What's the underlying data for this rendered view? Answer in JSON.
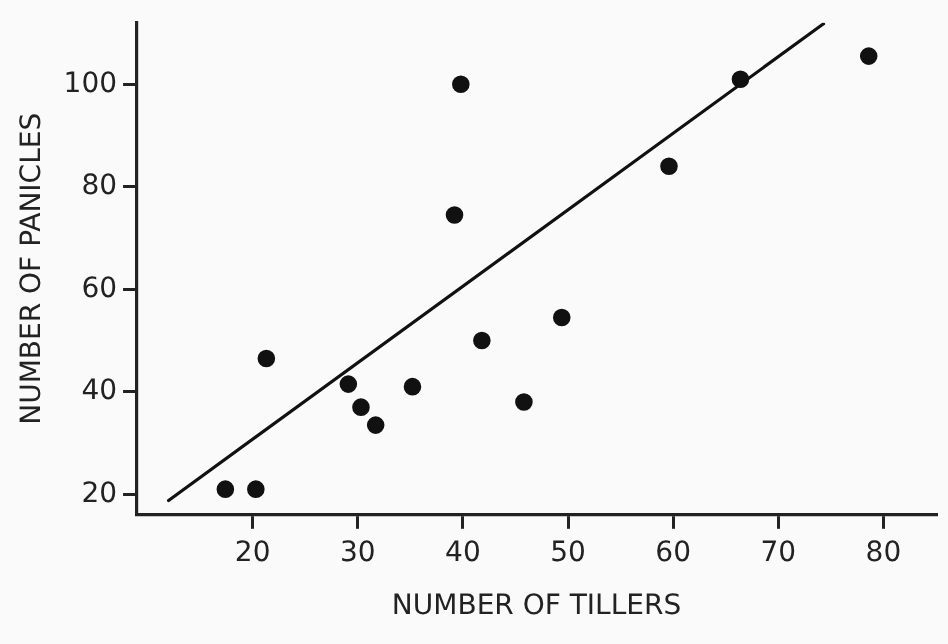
{
  "chart_data": {
    "type": "scatter",
    "xlabel": "NUMBER OF TILLERS",
    "ylabel": "NUMBER OF PANICLES",
    "xlim": [
      9,
      85
    ],
    "ylim": [
      16,
      112
    ],
    "xticks": [
      20,
      30,
      40,
      50,
      60,
      70,
      80
    ],
    "yticks": [
      20,
      40,
      60,
      80,
      100
    ],
    "grid": false,
    "legend": false,
    "marker": "circle",
    "series": [
      {
        "color": "#111111",
        "x": [
          17.4,
          20.3,
          21.3,
          29.1,
          30.3,
          31.7,
          35.2,
          41.8,
          45.8,
          49.4,
          39.2,
          39.8,
          59.6,
          66.4,
          78.6
        ],
        "values": [
          21,
          21,
          46.5,
          41.5,
          37,
          33.5,
          41,
          50,
          38,
          54.5,
          74.5,
          100,
          84,
          101,
          105.5
        ]
      },
      {
        "type": "line",
        "color": "#111111",
        "marker": "none",
        "line_style": "solid",
        "x": [
          12,
          74.3
        ],
        "values": [
          18.8,
          111.8
        ]
      }
    ]
  }
}
